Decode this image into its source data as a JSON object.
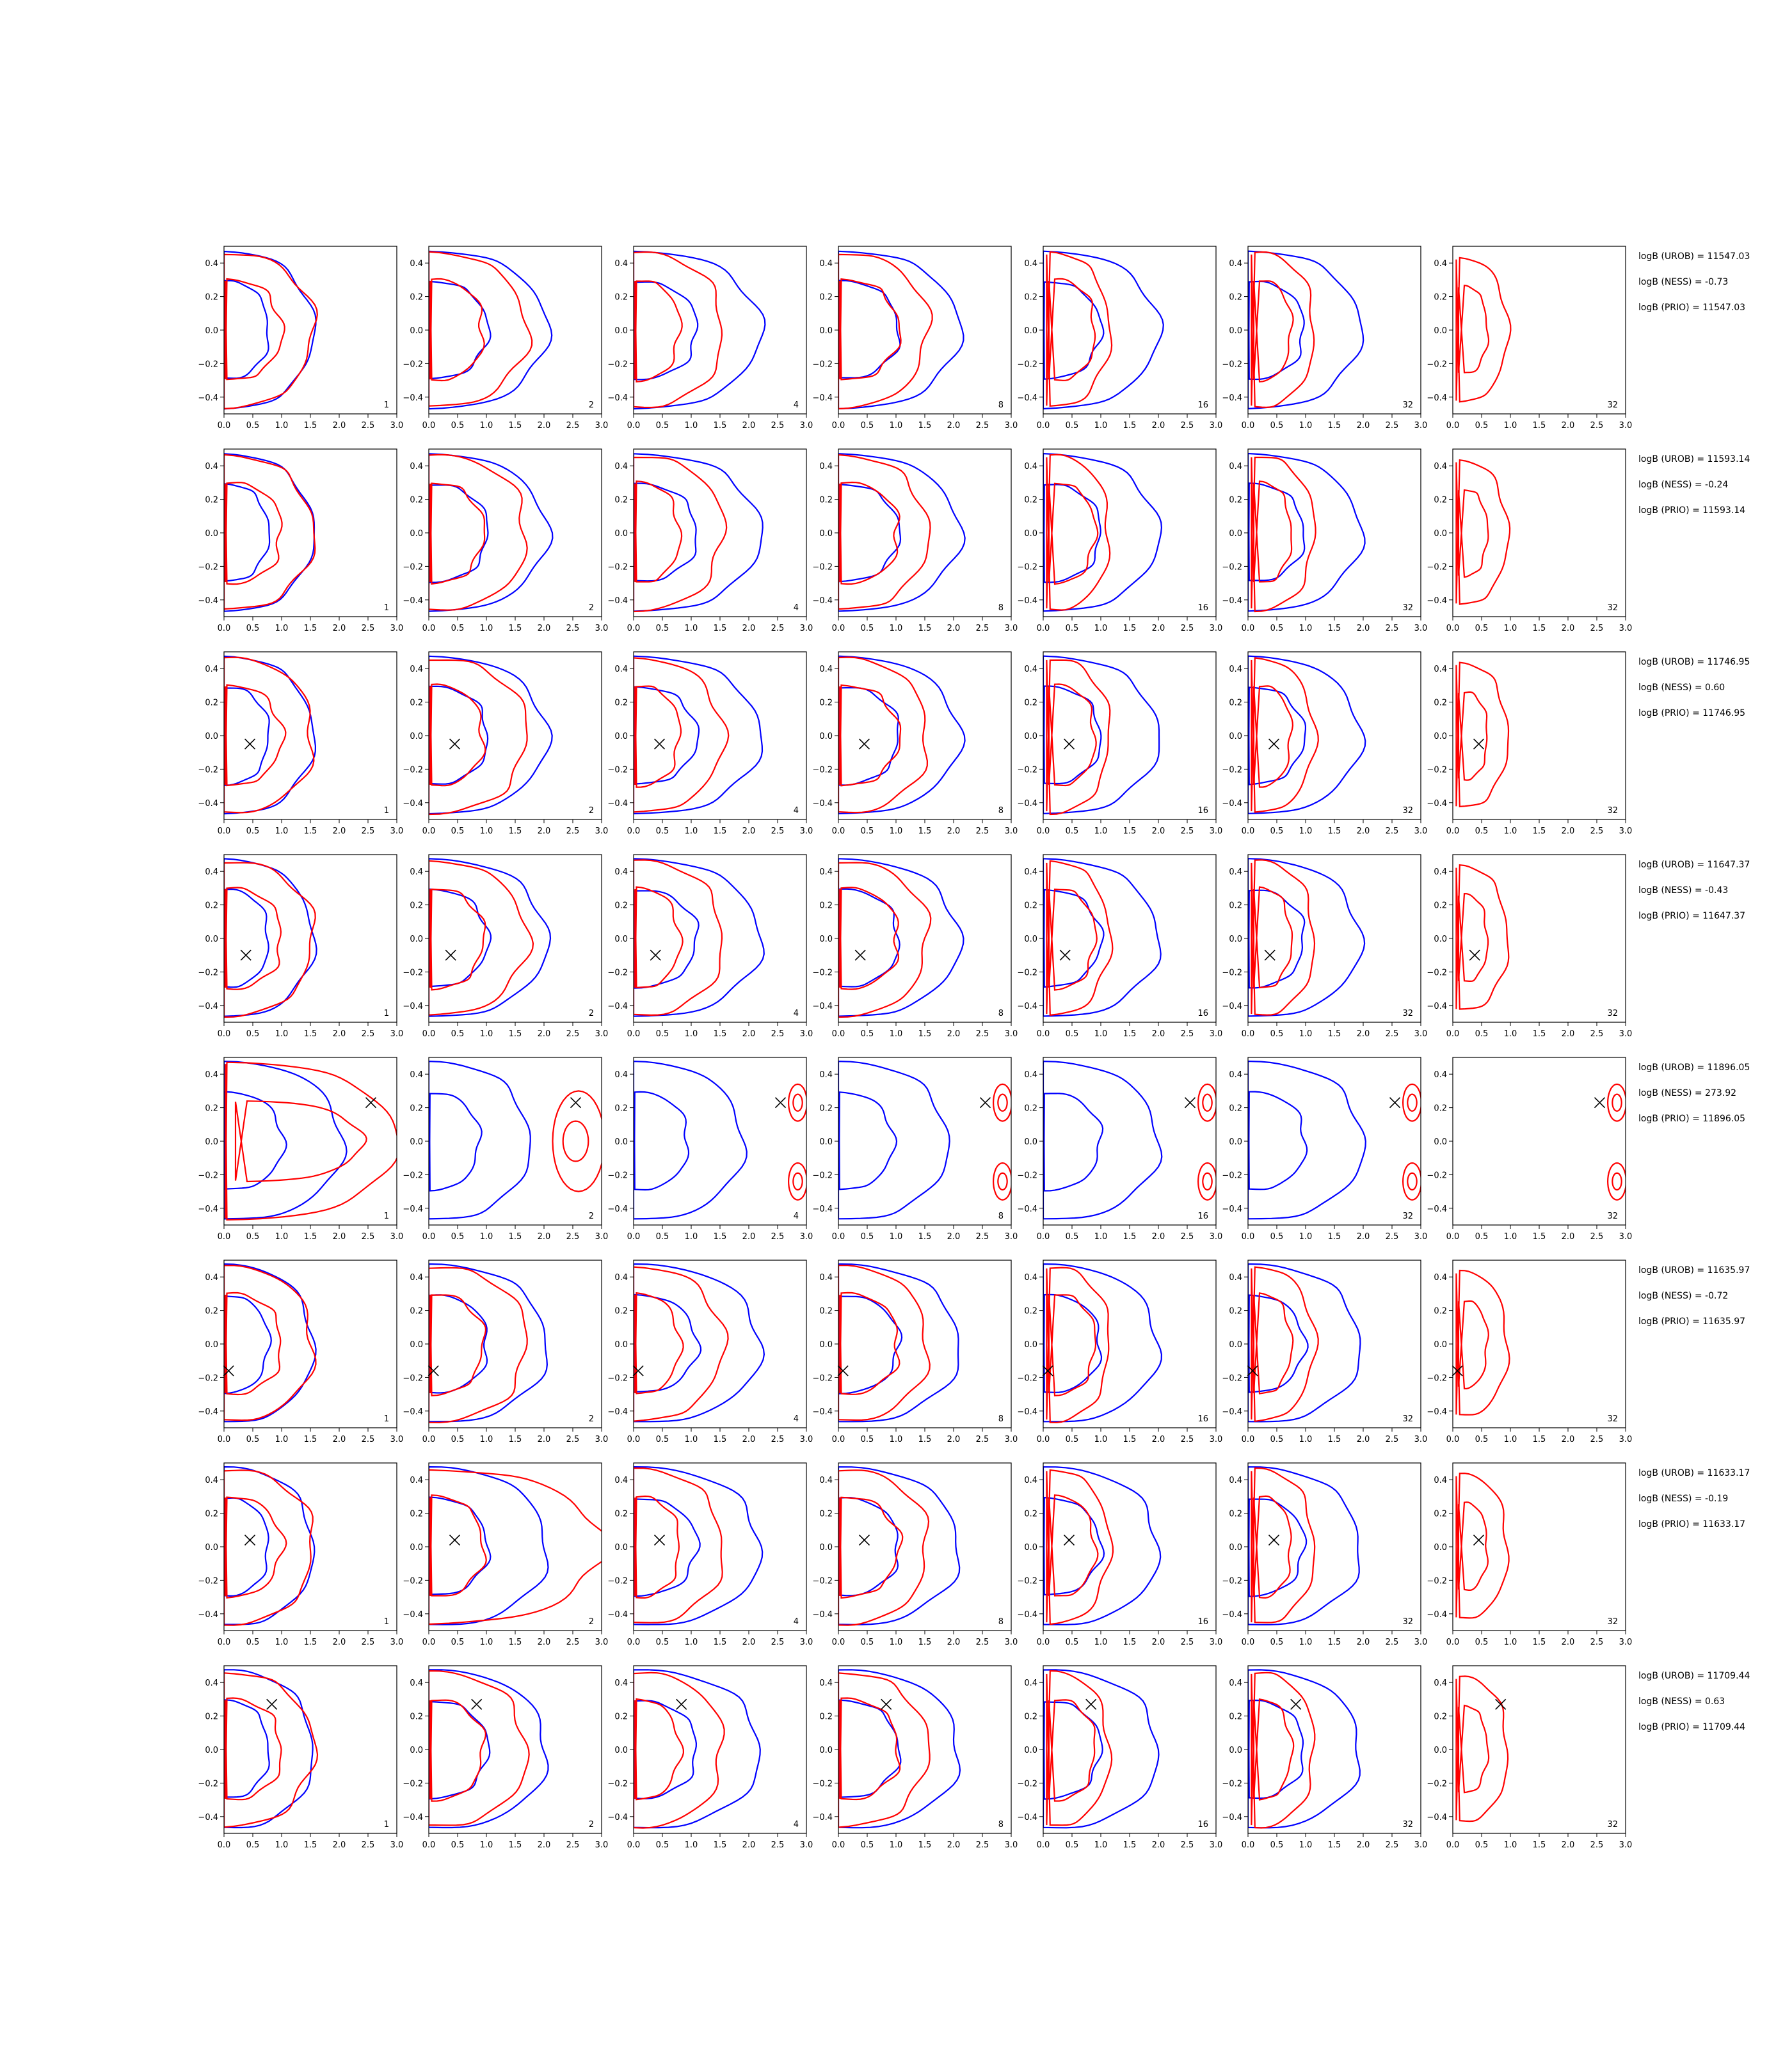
{
  "chart_data": {
    "type": "contour-grid",
    "rows": 8,
    "cols": 7,
    "xlim": [
      0.0,
      3.0
    ],
    "ylim": [
      -0.5,
      0.5
    ],
    "xticks": [
      0.0,
      0.5,
      1.0,
      1.5,
      2.0,
      2.5,
      3.0
    ],
    "yticks": [
      -0.4,
      -0.2,
      0.0,
      0.2,
      0.4
    ],
    "xtick_labels": [
      "0.0",
      "0.5",
      "1.0",
      "1.5",
      "2.0",
      "2.5",
      "3.0"
    ],
    "ytick_labels": [
      "−0.4",
      "−0.2",
      "0.0",
      "0.2",
      "0.4"
    ],
    "colors": {
      "reference": "#0000ff",
      "method": "#ff0000",
      "marker": "#000000",
      "axes": "#000000"
    },
    "column_counts": [
      "1",
      "2",
      "4",
      "8",
      "16",
      "32",
      "32"
    ],
    "row_stats": [
      {
        "urob": "logB (UROB) = 11547.03",
        "ness": "logB (NESS) = -0.73",
        "prio": "logB (PRIO) = 11547.03",
        "marker": null
      },
      {
        "urob": "logB (UROB) = 11593.14",
        "ness": "logB (NESS) = -0.24",
        "prio": "logB (PRIO) = 11593.14",
        "marker": null
      },
      {
        "urob": "logB (UROB) = 11746.95",
        "ness": "logB (NESS) = 0.60",
        "prio": "logB (PRIO) = 11746.95",
        "marker": [
          0.45,
          -0.05
        ]
      },
      {
        "urob": "logB (UROB) = 11647.37",
        "ness": "logB (NESS) = -0.43",
        "prio": "logB (PRIO) = 11647.37",
        "marker": [
          0.38,
          -0.1
        ]
      },
      {
        "urob": "logB (UROB) = 11896.05",
        "ness": "logB (NESS) = 273.92",
        "prio": "logB (PRIO) = 11896.05",
        "marker": [
          2.55,
          0.23
        ]
      },
      {
        "urob": "logB (UROB) = 11635.97",
        "ness": "logB (NESS) = -0.72",
        "prio": "logB (PRIO) = 11635.97",
        "marker": [
          0.08,
          -0.16
        ]
      },
      {
        "urob": "logB (UROB) = 11633.17",
        "ness": "logB (NESS) = -0.19",
        "prio": "logB (PRIO) = 11633.17",
        "marker": [
          0.45,
          0.04
        ]
      },
      {
        "urob": "logB (UROB) = 11709.44",
        "ness": "logB (NESS) = 0.63",
        "prio": "logB (PRIO) = 11709.44",
        "marker": [
          0.83,
          0.27
        ]
      }
    ]
  }
}
